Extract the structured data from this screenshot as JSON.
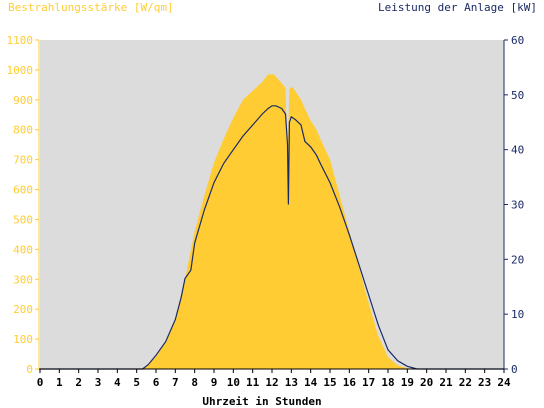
{
  "chart_data": {
    "type": "area",
    "left_title": "Bestrahlungsstärke [W/qm]",
    "right_title": "Leistung der Anlage [kW]",
    "xlabel": "Uhrzeit in Stunden",
    "xlim": [
      0,
      24
    ],
    "x_ticks": [
      "0",
      "1",
      "2",
      "3",
      "4",
      "5",
      "6",
      "7",
      "8",
      "9",
      "10",
      "11",
      "12",
      "13",
      "14",
      "15",
      "16",
      "17",
      "18",
      "19",
      "20",
      "21",
      "22",
      "23",
      "24"
    ],
    "y_left_lim": [
      0,
      1100
    ],
    "y_left_ticks": [
      "0",
      "100",
      "200",
      "300",
      "400",
      "500",
      "600",
      "700",
      "800",
      "900",
      "1000",
      "1100"
    ],
    "y_right_lim": [
      0,
      60
    ],
    "y_right_ticks": [
      "0",
      "10",
      "20",
      "30",
      "40",
      "50",
      "60"
    ],
    "grid": false,
    "colors": {
      "plot_bg": "#dcdcdc",
      "irradiance_fill": "#ffcc33",
      "power_line": "#1a2a66",
      "left_axis": "#ffcc33",
      "right_axis": "#1a2a66"
    },
    "series": [
      {
        "axis": "left",
        "style": "area",
        "x": [
          0,
          5.2,
          5.5,
          6.0,
          6.5,
          7.0,
          7.5,
          8.0,
          8.5,
          9.0,
          9.5,
          10.0,
          10.5,
          11.0,
          11.5,
          11.8,
          12.1,
          12.3,
          12.5,
          12.7,
          12.8,
          12.9,
          13.0,
          13.2,
          13.5,
          13.7,
          14.0,
          14.3,
          14.5,
          15.0,
          15.5,
          16.0,
          16.5,
          17.0,
          17.5,
          18.0,
          18.5,
          19.0,
          19.5,
          20.0,
          24.0
        ],
        "y": [
          0,
          0,
          10,
          40,
          90,
          170,
          300,
          460,
          580,
          690,
          770,
          840,
          900,
          930,
          960,
          985,
          985,
          970,
          955,
          940,
          700,
          935,
          945,
          930,
          900,
          870,
          830,
          800,
          770,
          700,
          580,
          460,
          340,
          220,
          110,
          40,
          12,
          3,
          0,
          0,
          0
        ]
      },
      {
        "axis": "right",
        "style": "line",
        "x": [
          0,
          5.3,
          5.6,
          6.0,
          6.5,
          7.0,
          7.3,
          7.5,
          7.8,
          8.0,
          8.5,
          9.0,
          9.5,
          10.0,
          10.5,
          11.0,
          11.5,
          11.8,
          12.0,
          12.2,
          12.5,
          12.7,
          12.8,
          12.85,
          12.9,
          13.0,
          13.2,
          13.5,
          13.7,
          14.0,
          14.3,
          14.5,
          15.0,
          15.5,
          16.0,
          16.5,
          17.0,
          17.5,
          18.0,
          18.5,
          19.0,
          19.5,
          24.0
        ],
        "y": [
          0,
          0,
          0.8,
          2.5,
          5,
          9,
          13,
          16.5,
          18,
          23,
          29,
          34,
          37.5,
          40,
          42.5,
          44.5,
          46.5,
          47.5,
          48,
          48,
          47.5,
          46.5,
          41,
          30,
          45,
          46,
          45.5,
          44.5,
          41.5,
          40.5,
          39,
          37.5,
          34,
          29.5,
          24.5,
          19,
          13.5,
          8,
          3.5,
          1.5,
          0.5,
          0,
          0
        ]
      }
    ]
  }
}
